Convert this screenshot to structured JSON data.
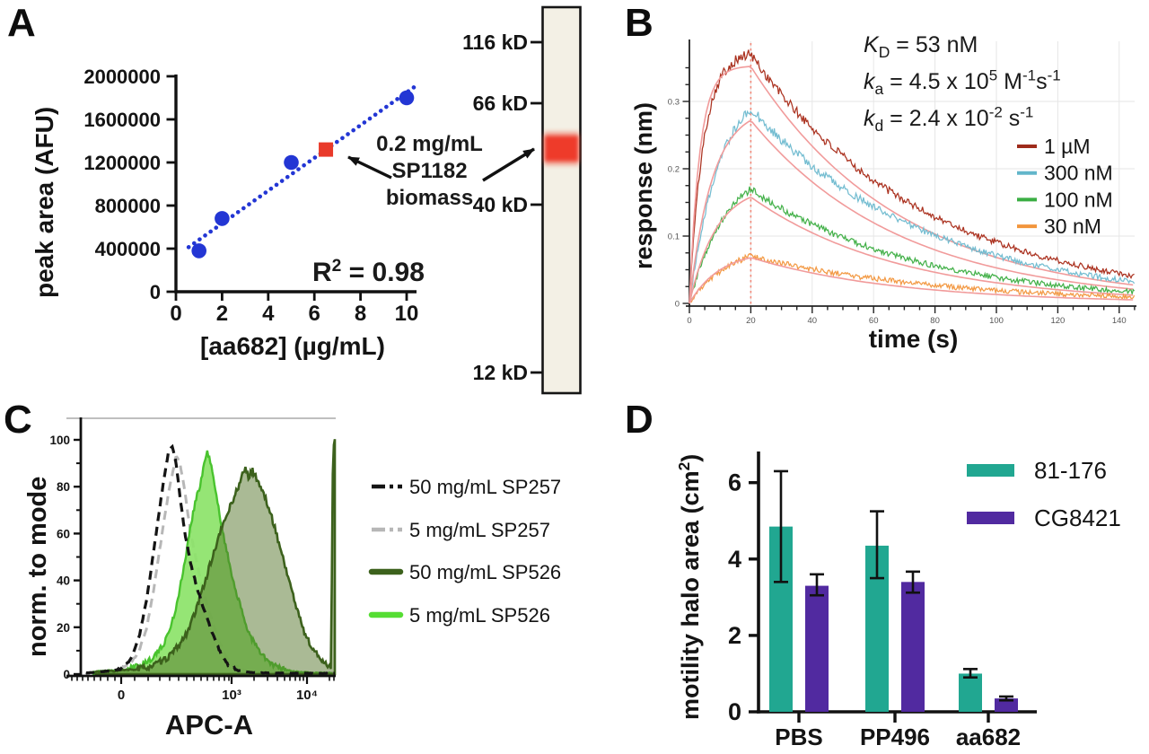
{
  "figure": {
    "background": "#ffffff",
    "panel_letters": {
      "a": "A",
      "b": "B",
      "c": "C",
      "d": "D"
    }
  },
  "panel_a": {
    "ylabel": "peak area (AFU)",
    "xlabel": "[aa682] (µg/mL)",
    "r_squared": {
      "base": "R",
      "exp": "2",
      "rest": " = 0.98"
    },
    "annotation": {
      "line1": "0.2 mg/mL",
      "line2": "SP1182",
      "line3": "biomass"
    },
    "colors": {
      "points": "#2336d4",
      "highlight": "#e93a2a"
    },
    "blot": {
      "lane_fill": "#f3f0e5",
      "band_color": "#ee3b2b",
      "markers": [
        {
          "label": "116 kD",
          "y": 47
        },
        {
          "label": "66 kD",
          "y": 115
        },
        {
          "label": "40 kD",
          "y": 228
        },
        {
          "label": "12 kD",
          "y": 415
        }
      ]
    }
  },
  "panel_b": {
    "ylabel": "response (nm)",
    "xlabel": "time (s)",
    "kinetics": {
      "l1": {
        "sym": "K",
        "sub": "D",
        "rest": " = 53 nM"
      },
      "l2": {
        "sym": "k",
        "sub": "a",
        "t1": " = 4.5 x 10",
        "e1": "5",
        "t2": " M",
        "e2": "-1",
        "t3": "s",
        "e3": "-1"
      },
      "l3": {
        "sym": "k",
        "sub": "d",
        "t1": " = 2.4 x 10",
        "e1": "-2",
        "t2": " s",
        "e2": "-1"
      }
    },
    "legend": [
      {
        "label": "1 µM",
        "color": "#9e2b1b"
      },
      {
        "label": "300 nM",
        "color": "#62b6ca"
      },
      {
        "label": "100 nM",
        "color": "#3aae43"
      },
      {
        "label": "30 nM",
        "color": "#f2953c"
      }
    ],
    "fit_color": "#f19b9b"
  },
  "panel_c": {
    "ylabel": "norm. to mode",
    "xlabel": "APC-A",
    "legend": [
      {
        "label": "50 mg/mL SP257",
        "style": "dashed",
        "color": "#141414"
      },
      {
        "label": "5 mg/mL SP257",
        "style": "dashed",
        "color": "#b7b7b7"
      },
      {
        "label": "50 mg/mL SP526",
        "style": "solid",
        "color": "#3c611c"
      },
      {
        "label": "5 mg/mL SP526",
        "style": "solid",
        "color": "#55dd33"
      }
    ]
  },
  "panel_d": {
    "ylabel_base": "motility halo area (cm",
    "ylabel_exp": "2",
    "ylabel_close": ")",
    "legend": [
      {
        "label": "81-176",
        "color": "#21a791"
      },
      {
        "label": "CG8421",
        "color": "#512aa0"
      }
    ]
  },
  "chart_data": [
    {
      "panel": "A",
      "type": "scatter",
      "xlabel": "[aa682] (µg/mL)",
      "ylabel": "peak area (AFU)",
      "xlim": [
        0,
        10.5
      ],
      "ylim": [
        0,
        2000000
      ],
      "xticks": [
        0,
        2,
        4,
        6,
        8,
        10
      ],
      "yticks": [
        0,
        400000,
        800000,
        1200000,
        1600000,
        2000000
      ],
      "points": [
        [
          1,
          380000
        ],
        [
          2,
          680000
        ],
        [
          5,
          1200000
        ],
        [
          10,
          1800000
        ]
      ],
      "highlight_point": {
        "x": 6.5,
        "y": 1320000,
        "marker": "square",
        "label": "0.2 mg/mL SP1182 biomass"
      },
      "fit_line": {
        "style": "dotted",
        "slope": 152000,
        "intercept": 330000,
        "x_start": 0.55,
        "x_end": 10.35
      },
      "r_squared": 0.98,
      "point_color": "#2336d4",
      "highlight_color": "#e93a2a"
    },
    {
      "panel": "A-blot",
      "type": "table",
      "marker_labels": [
        "116 kD",
        "66 kD",
        "40 kD",
        "12 kD"
      ],
      "band_between": [
        "66 kD",
        "40 kD"
      ],
      "band_color": "#ee3b2b"
    },
    {
      "panel": "B",
      "type": "line",
      "xlabel": "time (s)",
      "ylabel": "response (nm)",
      "xlim": [
        0,
        145
      ],
      "ylim": [
        0,
        0.39
      ],
      "xticks": [
        0,
        20,
        40,
        60,
        80,
        100,
        120,
        140
      ],
      "yticks": [
        0,
        0.1,
        0.2,
        0.3
      ],
      "grid": true,
      "association_end_s": 20,
      "kinetics": {
        "KD": "53 nM",
        "ka": "4.5 x 10^5 M^-1 s^-1",
        "kd": "2.4 x 10^-2 s^-1"
      },
      "series": [
        {
          "name": "1 µM",
          "color": "#ab3220",
          "peak_nm": 0.37,
          "k_obs": 0.22,
          "k_diss": 0.0176,
          "fit_plateau": 0.352
        },
        {
          "name": "300 nM",
          "color": "#74bdd1",
          "peak_nm": 0.29,
          "k_obs": 0.1,
          "k_diss": 0.0176,
          "fit_plateau": 0.272
        },
        {
          "name": "100 nM",
          "color": "#44b14a",
          "peak_nm": 0.17,
          "k_obs": 0.085,
          "k_diss": 0.0185,
          "fit_plateau": 0.158
        },
        {
          "name": "30 nM",
          "color": "#f39a45",
          "peak_nm": 0.07,
          "k_obs": 0.075,
          "k_diss": 0.016,
          "fit_plateau": 0.068
        }
      ],
      "legend_position": "right"
    },
    {
      "panel": "C",
      "type": "area",
      "xlabel": "APC-A",
      "ylabel": "norm. to mode",
      "ylim": [
        0,
        105
      ],
      "yticks": [
        0,
        20,
        40,
        60,
        80,
        100
      ],
      "xtick_labels": [
        "0",
        "10³",
        "10⁴"
      ],
      "series": [
        {
          "name": "50 mg/mL SP257",
          "style": "dashed",
          "color": "#141414",
          "points": [
            [
              0.02,
              0.5
            ],
            [
              0.08,
              1
            ],
            [
              0.13,
              1.5
            ],
            [
              0.17,
              3
            ],
            [
              0.2,
              7
            ],
            [
              0.23,
              16
            ],
            [
              0.26,
              32
            ],
            [
              0.29,
              55
            ],
            [
              0.32,
              78
            ],
            [
              0.345,
              95
            ],
            [
              0.36,
              97
            ],
            [
              0.375,
              90
            ],
            [
              0.39,
              76
            ],
            [
              0.41,
              60
            ],
            [
              0.435,
              46
            ],
            [
              0.46,
              36
            ],
            [
              0.49,
              26
            ],
            [
              0.52,
              17
            ],
            [
              0.55,
              9
            ],
            [
              0.58,
              4
            ],
            [
              0.62,
              1.5
            ],
            [
              0.68,
              0.6
            ],
            [
              0.8,
              0.4
            ],
            [
              1.0,
              0.3
            ]
          ]
        },
        {
          "name": "5 mg/mL SP257",
          "style": "dashed",
          "color": "#b7b7b7",
          "points": [
            [
              0.05,
              0.4
            ],
            [
              0.14,
              1.5
            ],
            [
              0.19,
              4
            ],
            [
              0.23,
              10
            ],
            [
              0.26,
              20
            ],
            [
              0.29,
              38
            ],
            [
              0.32,
              60
            ],
            [
              0.35,
              80
            ],
            [
              0.375,
              93
            ],
            [
              0.39,
              90
            ],
            [
              0.41,
              78
            ],
            [
              0.43,
              62
            ],
            [
              0.455,
              48
            ],
            [
              0.48,
              36
            ],
            [
              0.51,
              25
            ],
            [
              0.54,
              15
            ],
            [
              0.57,
              8
            ],
            [
              0.61,
              3
            ],
            [
              0.66,
              1
            ],
            [
              0.75,
              0.4
            ]
          ]
        },
        {
          "name": "50 mg/mL SP526",
          "style": "solid-filled",
          "color": "#3c611c",
          "points": [
            [
              0.06,
              1
            ],
            [
              0.15,
              1.5
            ],
            [
              0.22,
              2
            ],
            [
              0.28,
              3.5
            ],
            [
              0.33,
              6
            ],
            [
              0.37,
              10
            ],
            [
              0.41,
              16
            ],
            [
              0.45,
              26
            ],
            [
              0.49,
              40
            ],
            [
              0.53,
              54
            ],
            [
              0.56,
              64
            ],
            [
              0.59,
              72
            ],
            [
              0.62,
              80
            ],
            [
              0.645,
              88
            ],
            [
              0.66,
              84
            ],
            [
              0.675,
              87
            ],
            [
              0.7,
              82
            ],
            [
              0.73,
              74
            ],
            [
              0.76,
              64
            ],
            [
              0.79,
              52
            ],
            [
              0.82,
              40
            ],
            [
              0.85,
              28
            ],
            [
              0.88,
              18
            ],
            [
              0.91,
              11
            ],
            [
              0.94,
              7
            ],
            [
              0.965,
              4.5
            ],
            [
              0.985,
              2.8
            ],
            [
              0.993,
              98
            ],
            [
              1.0,
              100
            ]
          ]
        },
        {
          "name": "5 mg/mL SP526",
          "style": "solid-filled",
          "color": "#49c32e",
          "points": [
            [
              0.05,
              1
            ],
            [
              0.13,
              1.5
            ],
            [
              0.18,
              2
            ],
            [
              0.23,
              3.5
            ],
            [
              0.27,
              6
            ],
            [
              0.31,
              10
            ],
            [
              0.34,
              16
            ],
            [
              0.37,
              26
            ],
            [
              0.4,
              42
            ],
            [
              0.425,
              58
            ],
            [
              0.44,
              68
            ],
            [
              0.455,
              76
            ],
            [
              0.47,
              80
            ],
            [
              0.485,
              90
            ],
            [
              0.5,
              95
            ],
            [
              0.515,
              88
            ],
            [
              0.53,
              78
            ],
            [
              0.55,
              66
            ],
            [
              0.575,
              52
            ],
            [
              0.6,
              40
            ],
            [
              0.63,
              28
            ],
            [
              0.66,
              18
            ],
            [
              0.7,
              10
            ],
            [
              0.74,
              5
            ],
            [
              0.78,
              2.5
            ],
            [
              0.84,
              1
            ],
            [
              0.92,
              0.5
            ],
            [
              1.0,
              0.4
            ]
          ]
        }
      ]
    },
    {
      "panel": "D",
      "type": "bar",
      "categories": [
        "PBS",
        "PP496",
        "aa682"
      ],
      "ylabel": "motility halo area (cm^2)",
      "ylim": [
        0,
        7
      ],
      "yticks": [
        0,
        2,
        4,
        6
      ],
      "series": [
        {
          "name": "81-176",
          "color": "#21a791",
          "values": [
            4.85,
            4.35,
            1.0
          ],
          "error_low": [
            1.45,
            0.85,
            0.1
          ],
          "error_high": [
            1.45,
            0.9,
            0.12
          ]
        },
        {
          "name": "CG8421",
          "color": "#512aa0",
          "values": [
            3.3,
            3.4,
            0.35
          ],
          "error_low": [
            0.25,
            0.28,
            0.05
          ],
          "error_high": [
            0.3,
            0.27,
            0.05
          ]
        }
      ]
    }
  ]
}
